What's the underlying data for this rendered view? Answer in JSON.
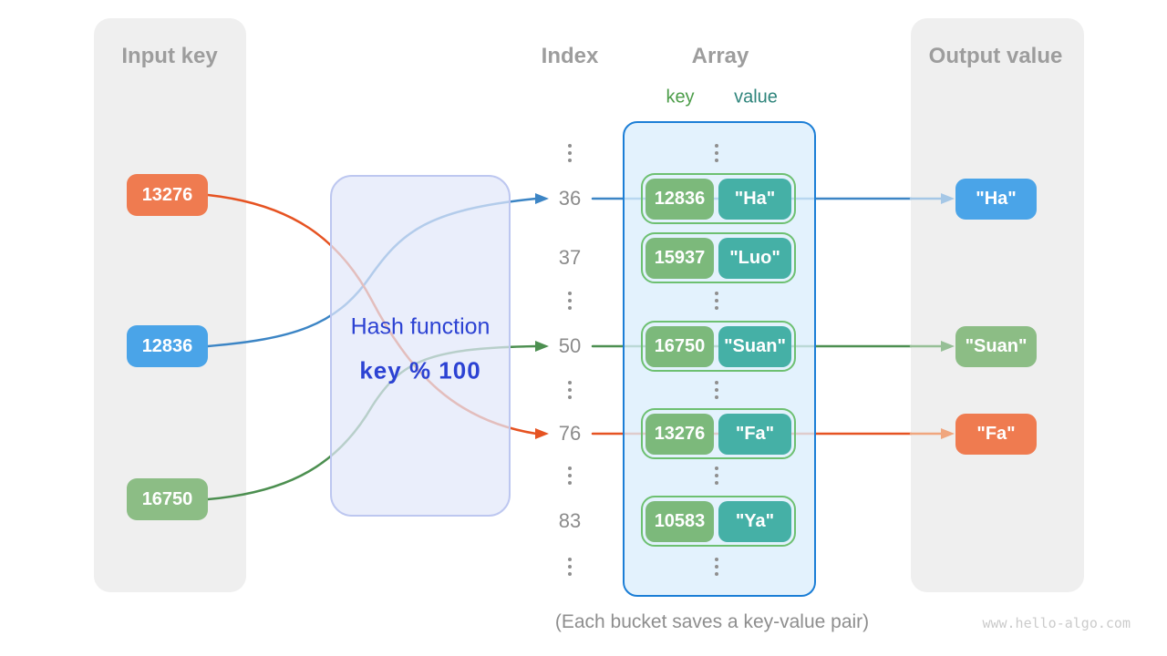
{
  "colors": {
    "orange": "#ef7b50",
    "blue": "#4aa4e8",
    "green": "#8cbd85",
    "arrow_orange": "#e65322",
    "arrow_blue": "#3c85c5",
    "arrow_green": "#4c8f50",
    "faded_orange": "#f0a67e",
    "faded_blue": "#a5c7e6",
    "faded_green": "#96bf96",
    "key_green": "#7cb97b",
    "value_teal": "#45b0a6",
    "pill_border": "#6dc071",
    "array_border": "#1b7ed6",
    "hash_text": "#2c42d3",
    "label_key": "#4c9d49",
    "label_value": "#2f857c"
  },
  "input_panel": {
    "title": "Input key",
    "keys": [
      {
        "text": "13276",
        "color_key": "orange"
      },
      {
        "text": "12836",
        "color_key": "blue"
      },
      {
        "text": "16750",
        "color_key": "green"
      }
    ]
  },
  "hash_box": {
    "line1": "Hash function",
    "line2": "key % 100"
  },
  "columns": {
    "index_title": "Index",
    "array_title": "Array",
    "key_header": "key",
    "value_header": "value"
  },
  "table_rows": [
    {
      "type": "dots"
    },
    {
      "type": "pair",
      "index": "36",
      "key": "12836",
      "value": "\"Ha\""
    },
    {
      "type": "pair",
      "index": "37",
      "key": "15937",
      "value": "\"Luo\""
    },
    {
      "type": "dots"
    },
    {
      "type": "pair",
      "index": "50",
      "key": "16750",
      "value": "\"Suan\""
    },
    {
      "type": "dots"
    },
    {
      "type": "pair",
      "index": "76",
      "key": "13276",
      "value": "\"Fa\""
    },
    {
      "type": "dots"
    },
    {
      "type": "pair",
      "index": "83",
      "key": "10583",
      "value": "\"Ya\""
    },
    {
      "type": "dots"
    }
  ],
  "output_panel": {
    "title": "Output value",
    "values": [
      {
        "text": "\"Ha\"",
        "color_key": "blue"
      },
      {
        "text": "\"Suan\"",
        "color_key": "green"
      },
      {
        "text": "\"Fa\"",
        "color_key": "orange"
      }
    ]
  },
  "caption": "(Each bucket saves a key-value pair)",
  "watermark": "www.hello-algo.com"
}
